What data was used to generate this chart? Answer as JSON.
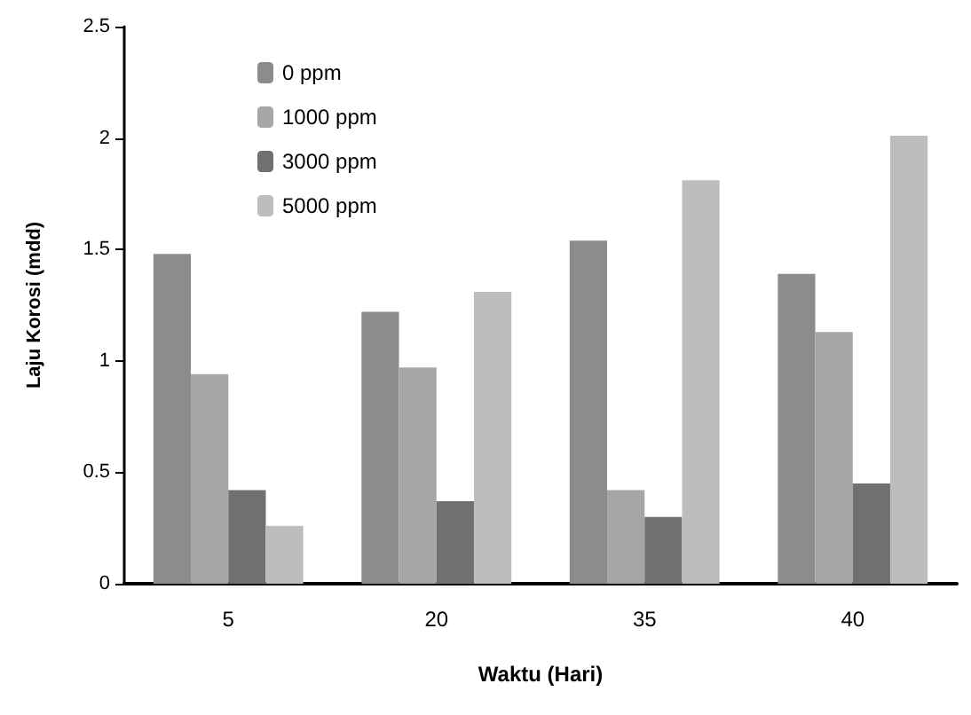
{
  "chart_data": {
    "type": "bar",
    "xlabel": "Waktu (Hari)",
    "ylabel": "Laju Korosi (mdd)",
    "categories": [
      "5",
      "20",
      "35",
      "40"
    ],
    "series": [
      {
        "name": "0 ppm",
        "color": "#8c8c8c",
        "values": [
          1.48,
          1.22,
          1.54,
          1.39
        ]
      },
      {
        "name": "1000 ppm",
        "color": "#a6a6a6",
        "values": [
          0.94,
          0.97,
          0.42,
          1.13
        ]
      },
      {
        "name": "3000 ppm",
        "color": "#707070",
        "values": [
          0.42,
          0.37,
          0.3,
          0.45
        ]
      },
      {
        "name": "5000 ppm",
        "color": "#bdbdbd",
        "values": [
          0.26,
          1.31,
          1.81,
          2.01
        ]
      }
    ],
    "ylim": [
      0,
      2.5
    ],
    "yticks": [
      0,
      0.5,
      1,
      1.5,
      2,
      2.5
    ],
    "grid": false,
    "legend": "top left"
  }
}
